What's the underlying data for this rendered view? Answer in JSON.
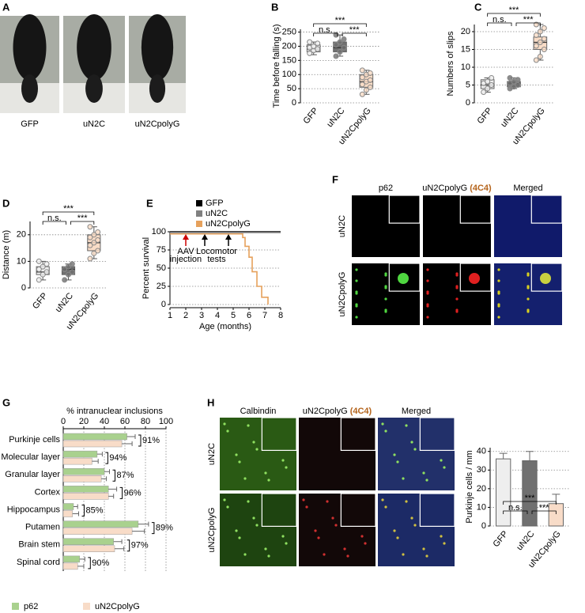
{
  "panel_A": {
    "label": "A",
    "captions": [
      "GFP",
      "uN2C",
      "uN2CpolyG"
    ]
  },
  "chart_data": [
    {
      "type": "box",
      "label": "B",
      "ylabel": "Time before falling (s)",
      "categories": [
        "GFP",
        "uN2C",
        "uN2CpolyG"
      ],
      "colors": [
        "#eeeeee",
        "#707070",
        "#f9dcc6"
      ],
      "boxes": [
        {
          "min": 170,
          "q1": 180,
          "median": 190,
          "q3": 205,
          "max": 215
        },
        {
          "min": 165,
          "q1": 180,
          "median": 195,
          "q3": 215,
          "max": 240
        },
        {
          "min": 30,
          "q1": 55,
          "median": 75,
          "q3": 100,
          "max": 115
        }
      ],
      "points": [
        [
          175,
          185,
          190,
          195,
          200,
          210,
          215
        ],
        [
          165,
          180,
          195,
          205,
          215,
          225,
          240
        ],
        [
          30,
          45,
          55,
          65,
          75,
          80,
          90,
          100,
          105,
          115
        ]
      ],
      "ylim": [
        0,
        260
      ],
      "yticks": [
        0,
        50,
        100,
        150,
        200,
        250
      ],
      "grid": true,
      "significance": [
        "n.s.",
        "***",
        "***"
      ]
    },
    {
      "type": "box",
      "label": "C",
      "ylabel": "Numbers of slips",
      "categories": [
        "GFP",
        "uN2C",
        "uN2CpolyG"
      ],
      "colors": [
        "#eeeeee",
        "#707070",
        "#f9dcc6"
      ],
      "boxes": [
        {
          "min": 3,
          "q1": 4,
          "median": 5,
          "q3": 6.5,
          "max": 7
        },
        {
          "min": 4,
          "q1": 4.5,
          "median": 5.5,
          "q3": 6,
          "max": 7
        },
        {
          "min": 12,
          "q1": 15,
          "median": 17,
          "q3": 18.5,
          "max": 22
        }
      ],
      "points": [
        [
          3,
          4,
          5,
          5.5,
          6,
          7
        ],
        [
          4,
          4.5,
          5,
          5.5,
          6,
          6.5,
          7
        ],
        [
          12,
          13,
          15,
          16,
          17,
          18,
          19,
          20,
          21,
          22
        ]
      ],
      "ylim": [
        0,
        22
      ],
      "yticks": [
        0,
        5,
        10,
        15,
        20
      ],
      "grid": true,
      "significance": [
        "n.s.",
        "***",
        "***"
      ]
    },
    {
      "type": "box",
      "label": "D",
      "ylabel": "Distance (m)",
      "categories": [
        "GFP",
        "uN2C",
        "uN2CpolyG"
      ],
      "colors": [
        "#eeeeee",
        "#707070",
        "#f9dcc6"
      ],
      "boxes": [
        {
          "min": 3,
          "q1": 5,
          "median": 6,
          "q3": 8,
          "max": 10
        },
        {
          "min": 3,
          "q1": 5,
          "median": 7,
          "q3": 8,
          "max": 9
        },
        {
          "min": 11,
          "q1": 14,
          "median": 17,
          "q3": 20,
          "max": 23
        }
      ],
      "points": [
        [
          3,
          5,
          6,
          7,
          8,
          9,
          10
        ],
        [
          3,
          5,
          6,
          7,
          8,
          9
        ],
        [
          11,
          13,
          14,
          16,
          17,
          18,
          19,
          20,
          21,
          23
        ]
      ],
      "ylim": [
        0,
        25
      ],
      "yticks": [
        0,
        10,
        20
      ],
      "grid": true,
      "significance": [
        "n.s.",
        "***",
        "***"
      ]
    },
    {
      "type": "step",
      "label": "E",
      "xlabel": "Age (months)",
      "ylabel": "Percent survival",
      "xlim": [
        1,
        8
      ],
      "xticks": [
        1,
        2,
        3,
        4,
        5,
        6,
        7,
        8
      ],
      "ylim": [
        0,
        100
      ],
      "yticks": [
        0,
        25,
        50,
        75,
        100
      ],
      "grid": true,
      "series": [
        {
          "name": "GFP",
          "color": "#000000",
          "x": [
            1,
            8
          ],
          "values": [
            100,
            100
          ]
        },
        {
          "name": "uN2C",
          "color": "#808080",
          "x": [
            1,
            8
          ],
          "values": [
            99,
            99
          ]
        },
        {
          "name": "uN2CpolyG",
          "color": "#e6a15c",
          "x": [
            1,
            5.6,
            5.6,
            5.75,
            5.75,
            6.0,
            6.0,
            6.2,
            6.2,
            6.5,
            6.5,
            6.8,
            6.8,
            7.2,
            7.2
          ],
          "values": [
            97,
            97,
            92,
            92,
            80,
            80,
            65,
            65,
            45,
            45,
            25,
            25,
            10,
            10,
            0
          ]
        }
      ],
      "annotations": [
        {
          "lines": [
            "AAV",
            "injection"
          ],
          "x": [
            2
          ],
          "color": "#cc0000"
        },
        {
          "lines": [
            "Locomotor",
            "tests"
          ],
          "x": [
            3.2,
            4.7
          ],
          "color": "#000000"
        }
      ]
    },
    {
      "type": "hbar",
      "label": "G",
      "title": "% intranuclear inclusions",
      "categories": [
        "Purkinje cells",
        "Molecular layer",
        "Granular layer",
        "Cortex",
        "Hippocampus",
        "Putamen",
        "Brain stem",
        "Spinal cord"
      ],
      "series": [
        {
          "name": "p62",
          "color": "#a9d18e",
          "values": [
            62,
            33,
            40,
            44,
            10,
            73,
            49,
            16
          ],
          "errors": [
            8,
            5,
            5,
            8,
            4,
            10,
            8,
            5
          ]
        },
        {
          "name": "uN2CpolyG",
          "color": "#f8dcc8",
          "values": [
            57,
            28,
            37,
            44,
            9,
            67,
            50,
            14
          ],
          "errors": [
            10,
            6,
            5,
            5,
            6,
            12,
            9,
            6
          ]
        }
      ],
      "overlap_labels": [
        "91%",
        "94%",
        "87%",
        "96%",
        "85%",
        "89%",
        "97%",
        "90%"
      ],
      "xlim": [
        0,
        100
      ],
      "xticks": [
        0,
        20,
        40,
        60,
        80,
        100
      ],
      "grid": true
    },
    {
      "type": "bar",
      "ylabel": "Purkinje cells / mm",
      "categories": [
        "GFP",
        "uN2C",
        "uN2CpolyG"
      ],
      "colors": [
        "#eeeeee",
        "#707070",
        "#f8dcc8"
      ],
      "values": [
        36,
        35,
        12
      ],
      "errors": [
        3,
        5,
        5
      ],
      "ylim": [
        0,
        42
      ],
      "yticks": [
        0,
        10,
        20,
        30,
        40
      ],
      "grid": true,
      "significance": [
        "n.s.",
        "***",
        "***"
      ]
    }
  ],
  "panel_F": {
    "label": "F",
    "columns": [
      "p62",
      "uN2CpolyG",
      "Merged"
    ],
    "antibody": "(4C4)",
    "rows": [
      "uN2C",
      "uN2CpolyG"
    ]
  },
  "panel_H": {
    "label": "H",
    "columns": [
      "Calbindin",
      "uN2CpolyG",
      "Merged"
    ],
    "antibody": "(4C4)",
    "rows": [
      "uN2C",
      "uN2CpolyG"
    ]
  }
}
